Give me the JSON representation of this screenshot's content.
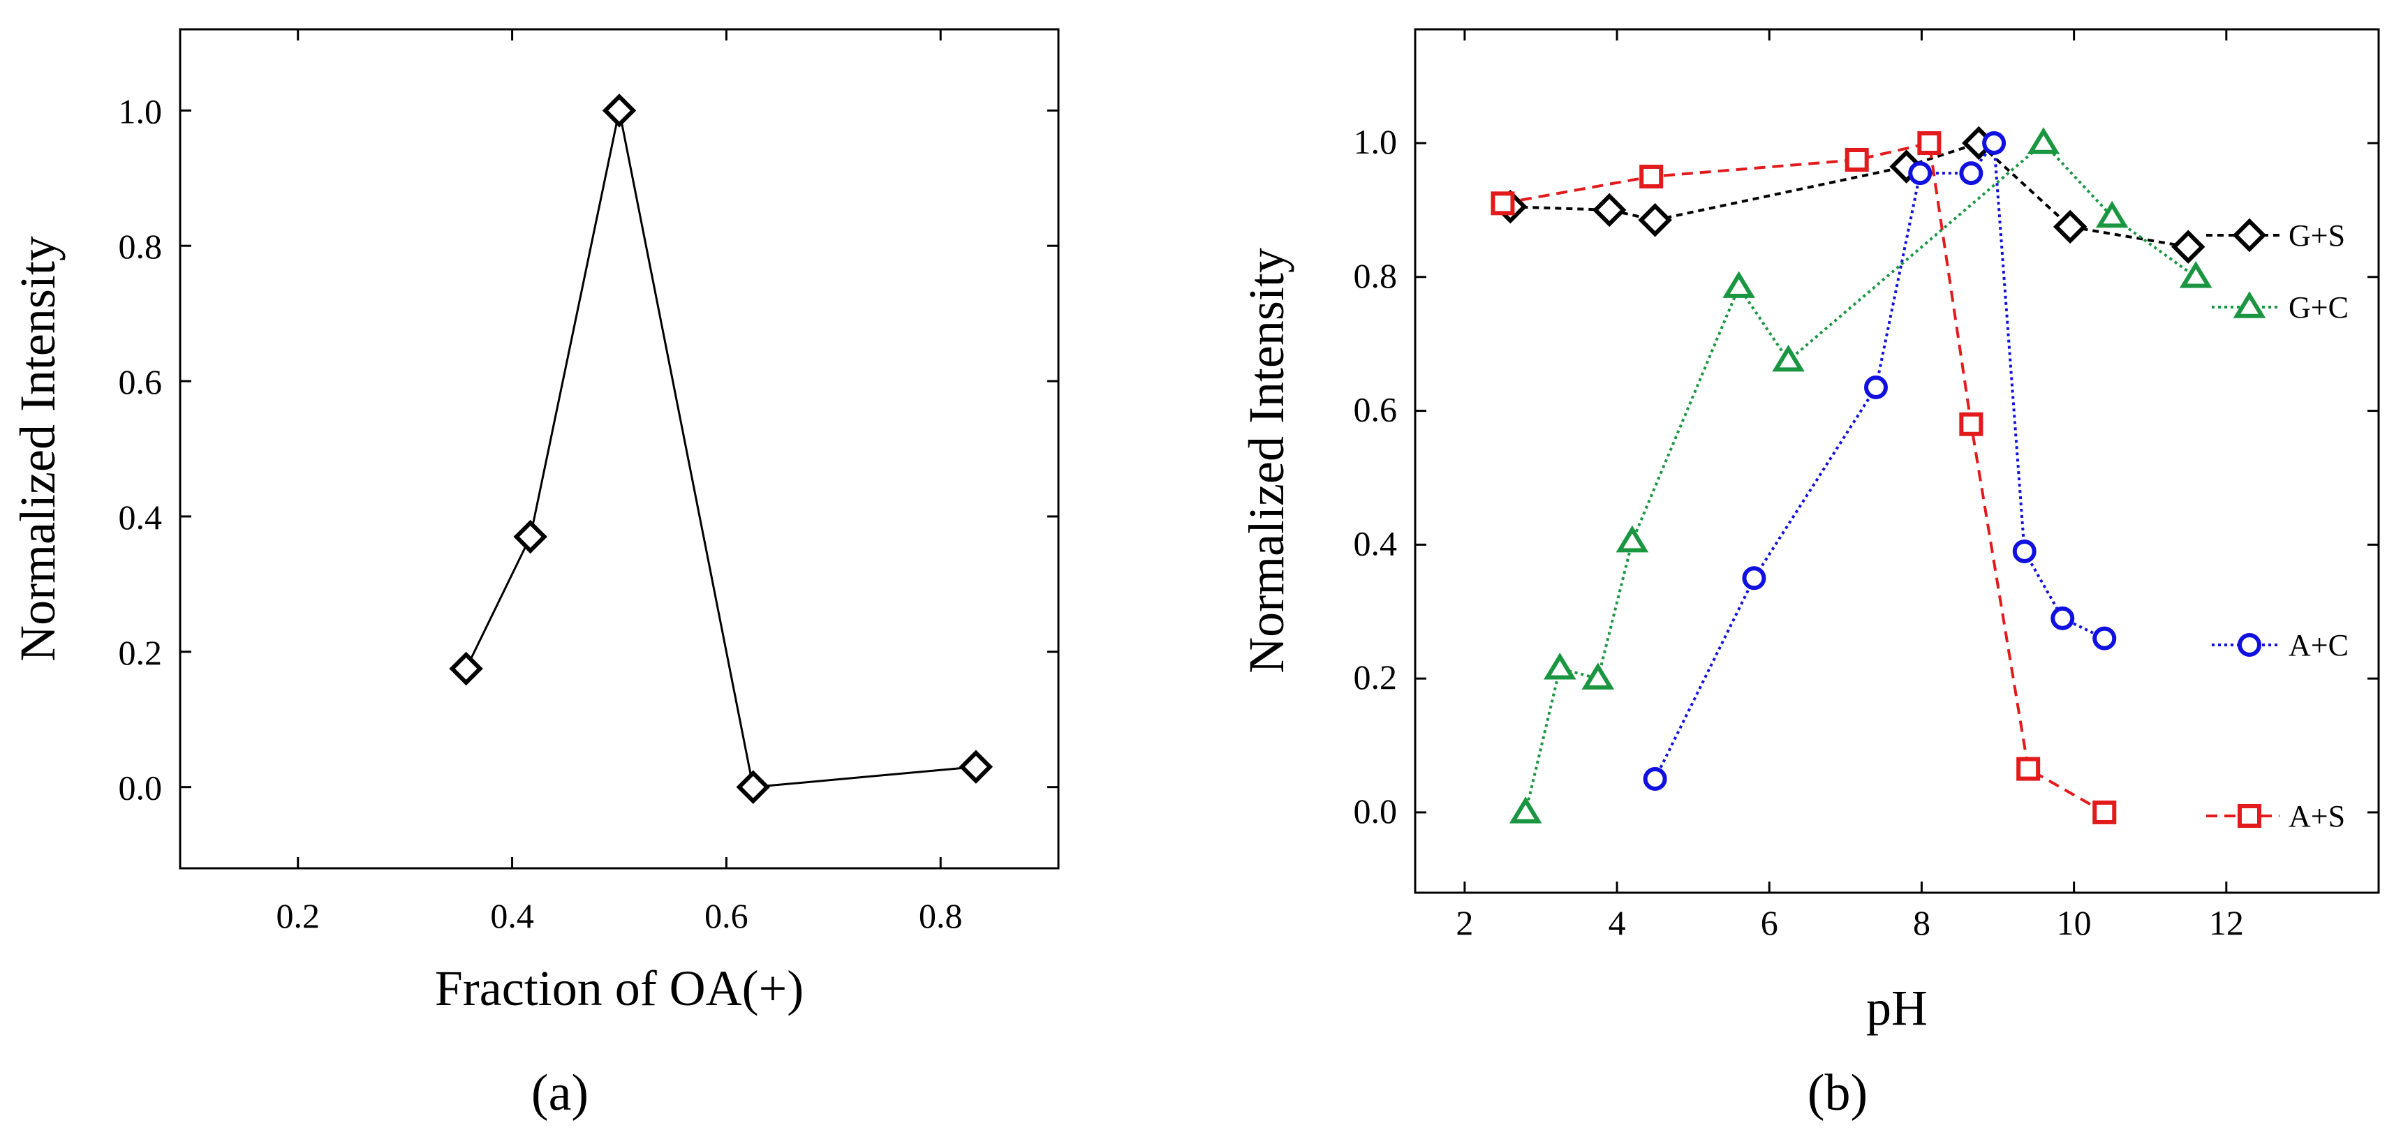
{
  "chart_data": [
    {
      "panel_label": "(a)",
      "type": "line",
      "xlabel": "Fraction of OA(+)",
      "ylabel": "Normalized Intensity",
      "xlim": [
        0.09,
        0.91
      ],
      "ylim": [
        -0.12,
        1.12
      ],
      "xticks": [
        0.2,
        0.4,
        0.6,
        0.8
      ],
      "xtick_labels": [
        "0.2",
        "0.4",
        "0.6",
        "0.8"
      ],
      "yticks": [
        0.0,
        0.2,
        0.4,
        0.6,
        0.8,
        1.0
      ],
      "ytick_labels": [
        "0.0",
        "0.2",
        "0.4",
        "0.6",
        "0.8",
        "1.0"
      ],
      "series": [
        {
          "name": "",
          "color": "#000000",
          "marker": "diamond",
          "line": "solid",
          "x": [
            0.357,
            0.417,
            0.5,
            0.625,
            0.833
          ],
          "y": [
            0.175,
            0.37,
            1.0,
            0.0,
            0.03
          ]
        }
      ]
    },
    {
      "panel_label": "(b)",
      "type": "line",
      "xlabel": "pH",
      "ylabel": "Normalized Intensity",
      "xlim": [
        1.35,
        14.0
      ],
      "ylim": [
        -0.12,
        1.17
      ],
      "xticks": [
        2,
        4,
        6,
        8,
        10,
        12
      ],
      "xtick_labels": [
        "2",
        "4",
        "6",
        "8",
        "10",
        "12"
      ],
      "yticks": [
        0.0,
        0.2,
        0.4,
        0.6,
        0.8,
        1.0
      ],
      "ytick_labels": [
        "0.0",
        "0.2",
        "0.4",
        "0.6",
        "0.8",
        "1.0"
      ],
      "legend_placement": "right",
      "series": [
        {
          "name": "G+S",
          "color": "#000000",
          "marker": "diamond",
          "line": "dashed-fine",
          "x": [
            2.6,
            3.9,
            4.5,
            7.8,
            8.75,
            9.95,
            11.5
          ],
          "y": [
            0.905,
            0.9,
            0.885,
            0.965,
            1.0,
            0.875,
            0.845
          ]
        },
        {
          "name": "G+C",
          "color": "#1a9641",
          "marker": "triangle",
          "line": "dotted",
          "x": [
            2.8,
            3.25,
            3.75,
            4.2,
            5.6,
            6.25,
            9.6,
            10.5,
            11.6
          ],
          "y": [
            0.0,
            0.215,
            0.2,
            0.405,
            0.785,
            0.675,
            1.0,
            0.89,
            0.8
          ]
        },
        {
          "name": "A+C",
          "color": "#1010e0",
          "marker": "circle",
          "line": "dotted",
          "x": [
            4.5,
            5.8,
            7.4,
            7.98,
            8.65,
            8.95,
            9.35,
            9.85,
            10.4
          ],
          "y": [
            0.05,
            0.35,
            0.635,
            0.955,
            0.955,
            1.0,
            0.39,
            0.29,
            0.26
          ]
        },
        {
          "name": "A+S",
          "color": "#e31a1c",
          "marker": "square",
          "line": "dashed",
          "x": [
            2.5,
            4.45,
            7.15,
            8.1,
            8.65,
            9.4,
            10.4
          ],
          "y": [
            0.91,
            0.95,
            0.975,
            1.0,
            0.58,
            0.065,
            0.0
          ]
        }
      ]
    }
  ]
}
